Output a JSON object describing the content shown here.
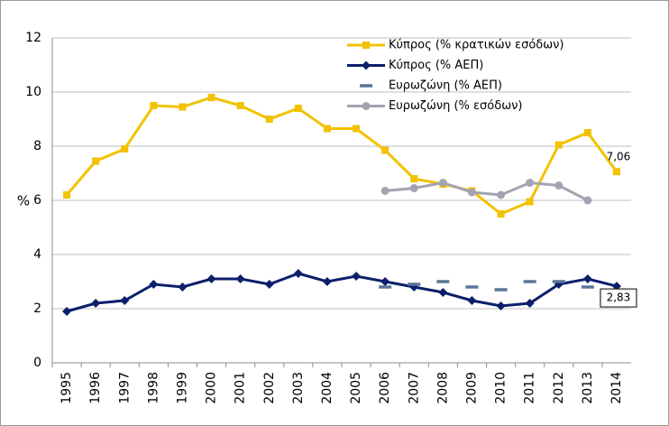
{
  "chart_data": {
    "type": "line",
    "ylabel": "%",
    "categories": [
      "1995",
      "1996",
      "1997",
      "1998",
      "1999",
      "2000",
      "2001",
      "2002",
      "2003",
      "2004",
      "2005",
      "2006",
      "2007",
      "2008",
      "2009",
      "2010",
      "2011",
      "2012",
      "2013",
      "2014"
    ],
    "ylim": [
      0,
      12
    ],
    "yticks": [
      0,
      2,
      4,
      6,
      8,
      10,
      12
    ],
    "grid": true,
    "legend": "top",
    "series": [
      {
        "name": "Κύπρος (% κρατικών εσόδων)",
        "color": "#f2c200",
        "marker": "square",
        "line": true,
        "values": [
          6.2,
          7.45,
          7.9,
          9.5,
          9.45,
          9.8,
          9.5,
          9.0,
          9.4,
          8.65,
          8.65,
          7.85,
          6.8,
          6.6,
          6.35,
          5.5,
          5.95,
          8.05,
          8.5,
          7.06
        ],
        "value_labels": [
          null,
          null,
          null,
          null,
          null,
          null,
          null,
          null,
          null,
          null,
          null,
          null,
          null,
          null,
          null,
          null,
          null,
          null,
          null,
          "7,06"
        ]
      },
      {
        "name": "Κύπρος (% ΑΕΠ)",
        "color": "#0c1f6b",
        "marker": "diamond",
        "line": true,
        "label_box": true,
        "values": [
          1.9,
          2.2,
          2.3,
          2.9,
          2.8,
          3.1,
          3.1,
          2.9,
          3.3,
          3.0,
          3.2,
          3.0,
          2.8,
          2.6,
          2.3,
          2.1,
          2.2,
          2.9,
          3.1,
          2.83
        ],
        "value_labels": [
          null,
          null,
          null,
          null,
          null,
          null,
          null,
          null,
          null,
          null,
          null,
          null,
          null,
          null,
          null,
          null,
          null,
          null,
          null,
          "2,83"
        ]
      },
      {
        "name": "Ευρωζώνη (% ΑΕΠ)",
        "color": "#5b7498",
        "marker": "dash",
        "line": false,
        "values": [
          null,
          null,
          null,
          null,
          null,
          null,
          null,
          null,
          null,
          null,
          null,
          2.8,
          2.9,
          3.0,
          2.8,
          2.7,
          3.0,
          3.0,
          2.8,
          null
        ]
      },
      {
        "name": "Ευρωζώνη (% εσόδων)",
        "color": "#a3a3b3",
        "marker": "circle",
        "line": true,
        "values": [
          null,
          null,
          null,
          null,
          null,
          null,
          null,
          null,
          null,
          null,
          null,
          6.35,
          6.45,
          6.65,
          6.3,
          6.2,
          6.65,
          6.55,
          6.0,
          null
        ]
      }
    ]
  }
}
